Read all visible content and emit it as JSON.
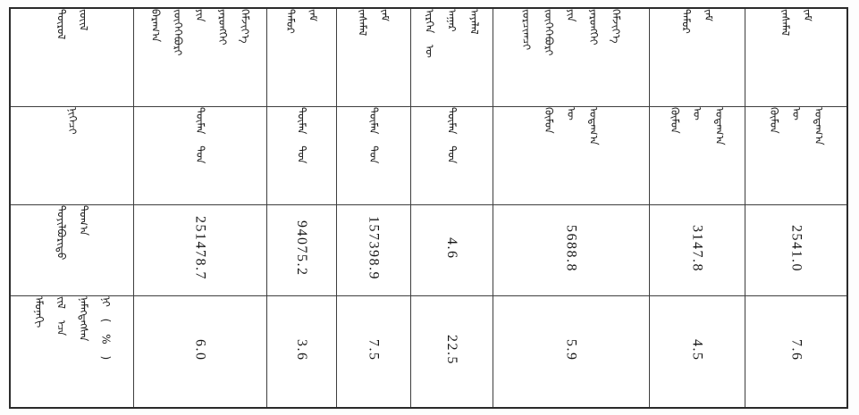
{
  "meta": {
    "script": "Mongolian traditional vertical script",
    "colors": {
      "background": "#ffffff",
      "ink": "#1c1c1c",
      "border_outer": "#2a2a2a",
      "border_inner": "#3e3e3e"
    }
  },
  "table": {
    "row_labels": {
      "item_lines": [
        "ᠲᠥᠷᠥᠯ",
        "ᠵᠦᠢᠯ"
      ],
      "unit_lines": [
        "ᠨᠢᠭᠡᠴᠢ"
      ],
      "absolute_lines": [
        "ᠲᠤᠶᠢᠯᠪᠤᠷᠢᠲᠤ",
        "ᠲᠣᠭ᠎ᠠ"
      ],
      "growth_lines": [
        "ᠡᠮᠦᠨᠡᠬᠢ",
        "ᠵᠢᠯ ᠡᠴᠡ",
        "ᠨᠡᠮᠡᠭᠳᠡᠭᠰᠡᠨ",
        "ᠨᠢ ( % )"
      ]
    },
    "columns": [
      {
        "header_lines": [
          "ᠪᠠᠷᠠᠭ᠎ᠠ",
          "ᠵᠥᠭᠡᠭᠡᠪᠦᠷᠢ",
          "ᠶᠢᠨ",
          "ᠶᠡᠷᠦᠩᠬᠡᠢ",
          "ᠬᠡᠮᠵᠢᠶ᠎ᠡ"
        ],
        "unit_lines": [
          "ᠲᠦᠮᠡᠨ ᠲᠣᠨ"
        ],
        "value": "251478.7",
        "growth": "6.0"
      },
      {
        "header_lines": [
          "ᠲᠡᠮᠦᠷ",
          "ᠵᠠᠮ"
        ],
        "unit_lines": [
          "ᠲᠦᠮᠡᠨ ᠲᠣᠨ"
        ],
        "value": "94075.2",
        "growth": "3.6"
      },
      {
        "header_lines": [
          "ᠵᠠᠰᠠᠮᠠᠯ",
          "ᠵᠠᠮ"
        ],
        "unit_lines": [
          "ᠲᠦᠮᠡᠨ ᠲᠣᠨ"
        ],
        "value": "157398.9",
        "growth": "7.5"
      },
      {
        "header_lines": [
          "ᠢᠷᠭᠡᠨ ᠦ",
          "ᠠᠭᠠᠷ",
          "ᠠᠶᠠᠯᠠᠯ"
        ],
        "unit_lines": [
          "ᠲᠦᠮᠡᠨ ᠲᠣᠨ"
        ],
        "value": "4.6",
        "growth": "22.5"
      },
      {
        "header_lines": [
          "ᠵᠣᠷᠴᠢᠭᠴᠢ",
          "ᠵᠥᠭᠡᠭᠡᠪᠦᠷᠢ",
          "ᠶᠢᠨ",
          "ᠶᠡᠷᠦᠩᠬᠡᠢ",
          "ᠬᠡᠮᠵᠢᠶ᠎ᠡ"
        ],
        "unit_lines": [
          "ᠬᠥᠮᠦᠨ",
          "ᠦ",
          "ᠤᠳᠠᠭ᠎ᠠ"
        ],
        "value": "5688.8",
        "growth": "5.9"
      },
      {
        "header_lines": [
          "ᠲᠡᠮᠦᠷ",
          "ᠵᠠᠮ"
        ],
        "unit_lines": [
          "ᠬᠥᠮᠦᠨ",
          "ᠦ",
          "ᠤᠳᠠᠭ᠎ᠠ"
        ],
        "value": "3147.8",
        "growth": "4.5"
      },
      {
        "header_lines": [
          "ᠵᠠᠰᠠᠮᠠᠯ",
          "ᠵᠠᠮ"
        ],
        "unit_lines": [
          "ᠬᠥᠮᠦᠨ",
          "ᠦ",
          "ᠤᠳᠠᠭ᠎ᠠ"
        ],
        "value": "2541.0",
        "growth": "7.6"
      }
    ]
  }
}
